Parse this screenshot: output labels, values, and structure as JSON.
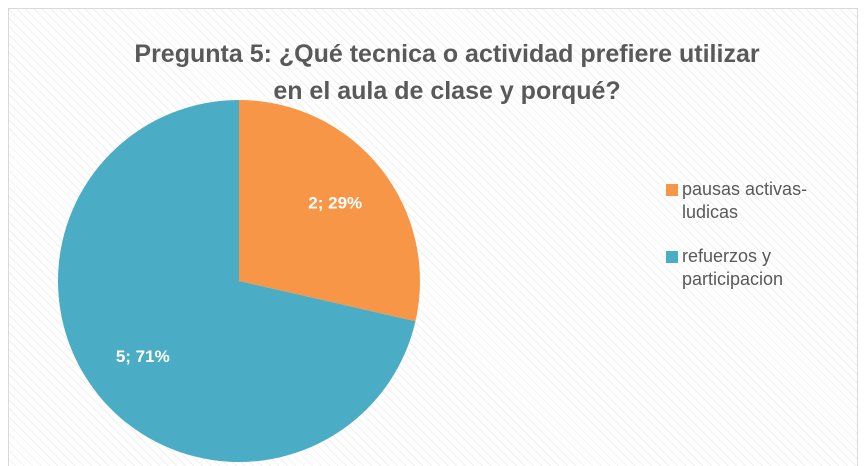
{
  "chart_data": {
    "type": "pie",
    "title": "Pregunta 5: ¿Qué tecnica o actividad prefiere utilizar en el aula de clase y porqué?",
    "categories": [
      "pausas activas-ludicas",
      "refuerzos y participacion"
    ],
    "values": [
      2,
      5
    ],
    "value_labels": [
      "2; 29%",
      "5; 71%"
    ],
    "colors": [
      "#F79646",
      "#4BACC6"
    ],
    "legend": "right"
  }
}
